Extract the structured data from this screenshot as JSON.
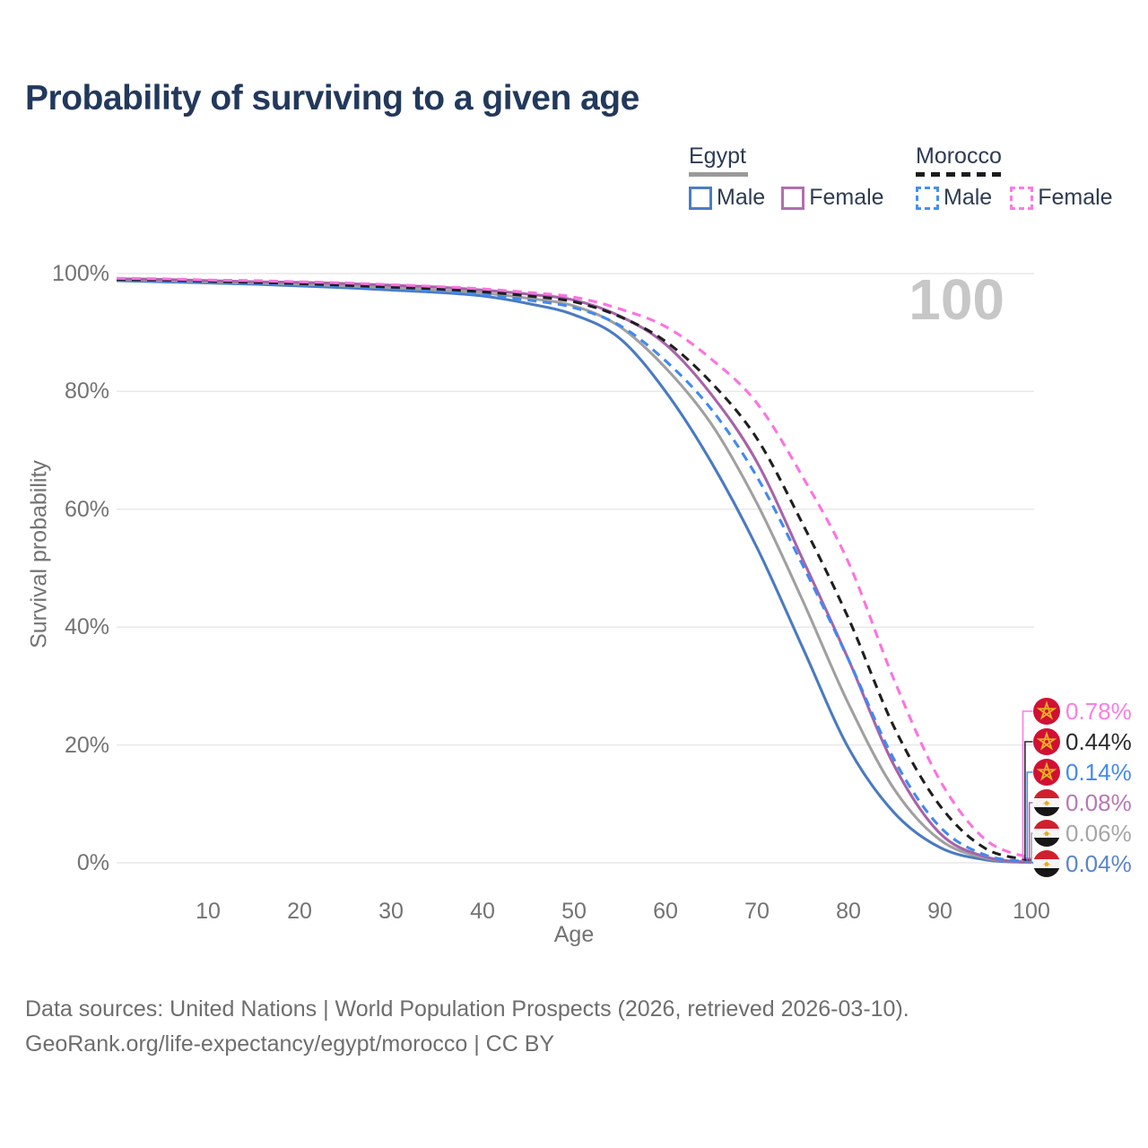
{
  "title": "Probability of surviving to a given age",
  "watermark": "100",
  "legend": {
    "groups": [
      {
        "name": "Egypt",
        "line_style": "solid",
        "line_color": "#9a9a9a",
        "items": [
          {
            "label": "Male",
            "color": "#4a7dc6"
          },
          {
            "label": "Female",
            "color": "#b16fad"
          }
        ]
      },
      {
        "name": "Morocco",
        "line_style": "dashed",
        "line_color": "#1c1c1c",
        "items": [
          {
            "label": "Male",
            "color": "#4490f0"
          },
          {
            "label": "Female",
            "color": "#fb7ae4"
          }
        ]
      }
    ]
  },
  "chart_data": {
    "type": "line",
    "title": "Probability of surviving to a given age",
    "xlabel": "Age",
    "ylabel": "Survival probability",
    "xlim": [
      0,
      100
    ],
    "ylim": [
      0,
      100
    ],
    "grid": true,
    "x_tick_values": [
      10,
      20,
      30,
      40,
      50,
      60,
      70,
      80,
      90,
      100
    ],
    "y_tick_values": [
      0,
      20,
      40,
      60,
      80,
      100
    ],
    "y_tick_suffix": "%",
    "x": [
      0,
      5,
      10,
      15,
      20,
      25,
      30,
      35,
      40,
      45,
      50,
      55,
      60,
      65,
      70,
      75,
      80,
      85,
      90,
      95,
      100
    ],
    "series": [
      {
        "name": "Egypt Male",
        "country": "egypt",
        "sex": "male",
        "style": "solid",
        "color": "#4a7ac2",
        "end_label": "0.04%",
        "end_label_color": "#5b85c9",
        "values": [
          98.8,
          98.6,
          98.4,
          98.2,
          97.9,
          97.6,
          97.2,
          96.8,
          96.2,
          94.9,
          93.0,
          89.0,
          80.0,
          68.0,
          53.5,
          36.5,
          19.5,
          8.5,
          2.6,
          0.5,
          0.04
        ]
      },
      {
        "name": "Egypt (all)",
        "country": "egypt",
        "sex": "all",
        "style": "solid",
        "color": "#a0a0a0",
        "end_label": "0.06%",
        "end_label_color": "#a6a6a6",
        "values": [
          99.0,
          98.8,
          98.6,
          98.4,
          98.2,
          97.9,
          97.6,
          97.2,
          96.7,
          95.8,
          94.5,
          91.0,
          84.0,
          74.5,
          61.0,
          44.5,
          27.0,
          12.5,
          3.9,
          0.8,
          0.06
        ]
      },
      {
        "name": "Egypt Female",
        "country": "egypt",
        "sex": "female",
        "style": "solid",
        "color": "#a763a8",
        "end_label": "0.08%",
        "end_label_color": "#b778b7",
        "values": [
          99.1,
          99.0,
          98.8,
          98.6,
          98.5,
          98.3,
          98.0,
          97.7,
          97.2,
          96.5,
          95.5,
          92.8,
          88.0,
          79.5,
          68.0,
          51.5,
          34.5,
          16.5,
          5.0,
          1.0,
          0.08
        ]
      },
      {
        "name": "Morocco Male",
        "country": "morocco",
        "sex": "male",
        "style": "dashed",
        "color": "#4289f0",
        "end_label": "0.14%",
        "end_label_color": "#4489f2",
        "values": [
          98.9,
          98.7,
          98.5,
          98.3,
          98.1,
          97.8,
          97.4,
          97.0,
          96.4,
          95.5,
          94.2,
          91.2,
          85.2,
          77.0,
          65.5,
          50.5,
          34.5,
          17.5,
          6.1,
          1.3,
          0.14
        ]
      },
      {
        "name": "Morocco (all)",
        "country": "morocco",
        "sex": "all",
        "style": "dashed",
        "color": "#1f1f1f",
        "end_label": "0.44%",
        "end_label_color": "#2b2b2b",
        "values": [
          99.0,
          98.9,
          98.7,
          98.5,
          98.3,
          98.0,
          97.7,
          97.4,
          96.9,
          96.2,
          95.2,
          92.7,
          88.5,
          81.5,
          72.0,
          57.5,
          41.5,
          23.0,
          9.7,
          2.4,
          0.44
        ]
      },
      {
        "name": "Morocco Female",
        "country": "morocco",
        "sex": "female",
        "style": "dashed",
        "color": "#fb73e0",
        "end_label": "0.78%",
        "end_label_color": "#fb7ee2",
        "values": [
          99.2,
          99.1,
          98.9,
          98.8,
          98.6,
          98.4,
          98.1,
          97.8,
          97.4,
          96.8,
          96.0,
          94.0,
          91.0,
          85.5,
          78.0,
          65.5,
          51.0,
          31.0,
          14.0,
          3.9,
          0.78
        ]
      }
    ],
    "legend_position": "top-right",
    "colors": {
      "gridline": "#e9e9e9",
      "axis_text": "#737373",
      "watermark": "#c7c7c7"
    }
  },
  "footer": {
    "line1": "Data sources: United Nations | World Population Prospects (2026, retrieved 2026-03-10).",
    "line2": "GeoRank.org/life-expectancy/egypt/morocco | CC BY"
  }
}
